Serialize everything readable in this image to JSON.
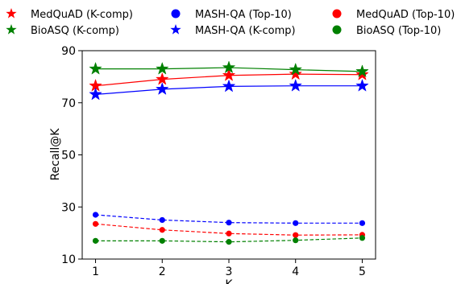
{
  "chart_data": {
    "type": "line",
    "x": [
      1,
      2,
      3,
      4,
      5
    ],
    "xlabel": "K",
    "ylabel": "Recall@K",
    "ylim": [
      10,
      90
    ],
    "xlim": [
      0.8,
      5.2
    ],
    "yticks": [
      10,
      30,
      50,
      70,
      90
    ],
    "xticks": [
      1,
      2,
      3,
      4,
      5
    ],
    "grid": false,
    "legend_position": "top",
    "series": [
      {
        "name": "MedQuAD (K-comp)",
        "values": [
          76.5,
          79.0,
          80.5,
          81.0,
          80.8
        ],
        "color": "#ff0000",
        "marker": "star",
        "linestyle": "solid"
      },
      {
        "name": "BioASQ (K-comp)",
        "values": [
          83.0,
          83.0,
          83.5,
          82.7,
          82.0
        ],
        "color": "#008000",
        "marker": "star",
        "linestyle": "solid"
      },
      {
        "name": "MASH-QA (Top-10)",
        "values": [
          27.0,
          25.0,
          24.0,
          23.8,
          23.8
        ],
        "color": "#0000ff",
        "marker": "circle",
        "linestyle": "dashed"
      },
      {
        "name": "MASH-QA (K-comp)",
        "values": [
          73.2,
          75.2,
          76.3,
          76.5,
          76.5
        ],
        "color": "#0000ff",
        "marker": "star",
        "linestyle": "solid"
      },
      {
        "name": "MedQuAD (Top-10)",
        "values": [
          23.5,
          21.2,
          19.8,
          19.2,
          19.3
        ],
        "color": "#ff0000",
        "marker": "circle",
        "linestyle": "dashed"
      },
      {
        "name": "BioASQ (Top-10)",
        "values": [
          17.0,
          17.0,
          16.6,
          17.2,
          18.1
        ],
        "color": "#008000",
        "marker": "circle",
        "linestyle": "dashed"
      }
    ]
  }
}
